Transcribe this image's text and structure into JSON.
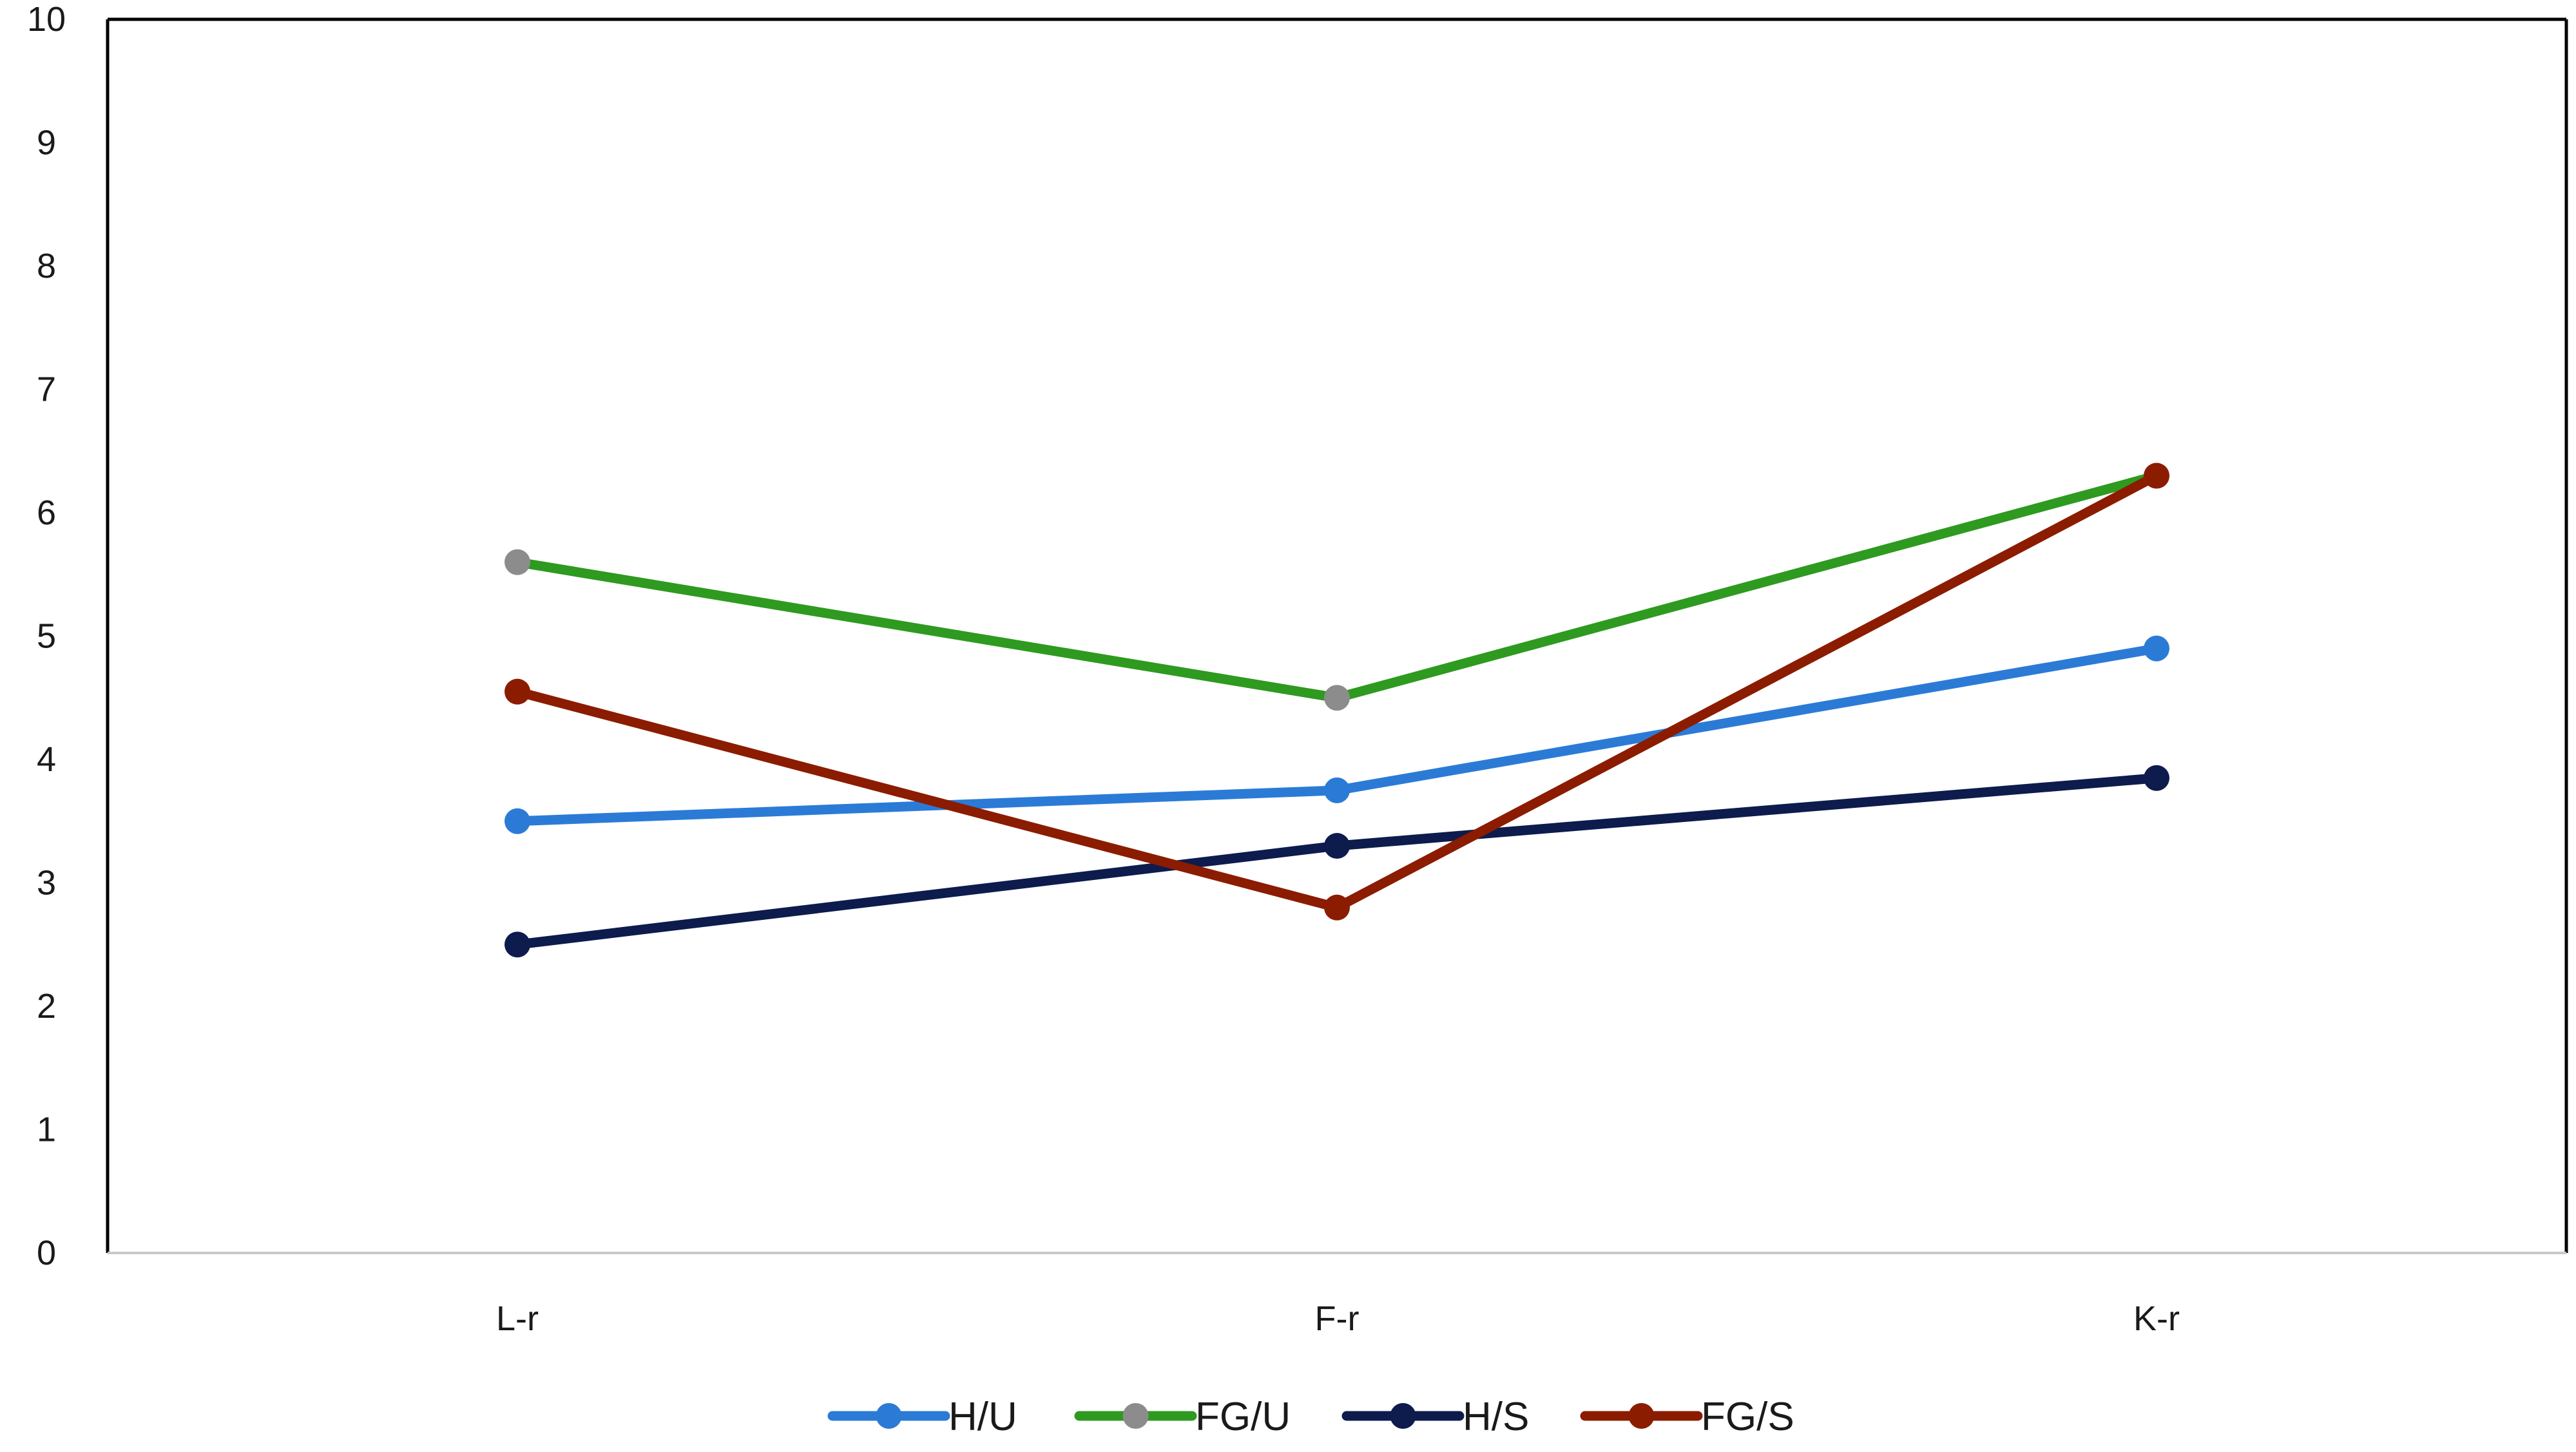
{
  "chart_data": {
    "type": "line",
    "categories": [
      "L-r",
      "F-r",
      "K-r"
    ],
    "y_ticks": [
      "0",
      "1",
      "2",
      "3",
      "4",
      "5",
      "6",
      "7",
      "8",
      "9",
      "10"
    ],
    "ylim": [
      0,
      10
    ],
    "grid": false,
    "legend_position": "bottom",
    "series": [
      {
        "name": "H/U",
        "values": [
          3.5,
          3.75,
          4.9
        ],
        "color": "#2b7bd6",
        "marker_color": "#2b7bd6"
      },
      {
        "name": "FG/U",
        "values": [
          5.6,
          4.5,
          6.3
        ],
        "color": "#2e9a1f",
        "marker_color": "#8c8c8c"
      },
      {
        "name": "H/S",
        "values": [
          2.5,
          3.3,
          3.85
        ],
        "color": "#0d1b4d",
        "marker_color": "#0d1b4d"
      },
      {
        "name": "FG/S",
        "values": [
          4.55,
          2.8,
          6.3
        ],
        "color": "#8b1c00",
        "marker_color": "#8b1c00"
      }
    ]
  }
}
